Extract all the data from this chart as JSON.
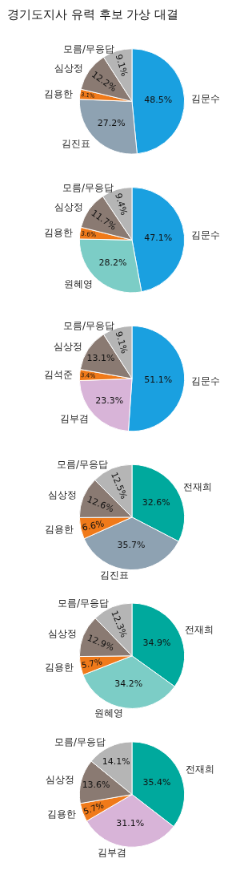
{
  "chart_data": [
    {
      "type": "pie",
      "title": "경기도지사 유력 후보 가상 대결",
      "categories": [
        "김문수",
        "김진표",
        "김용한",
        "심상정",
        "모름/무응답"
      ],
      "values": [
        48.5,
        27.2,
        3.1,
        12.2,
        9.1
      ],
      "colors": [
        "#1aa0e0",
        "#8ea2b2",
        "#f07a1a",
        "#8a7a72",
        "#b5b5b5"
      ],
      "value_labels": [
        "48.5%",
        "27.2%",
        "3.1%",
        "12.2%",
        "9.1%"
      ]
    },
    {
      "type": "pie",
      "categories": [
        "김문수",
        "원혜영",
        "김용한",
        "심상정",
        "모름/무응답"
      ],
      "values": [
        47.1,
        28.2,
        3.6,
        11.7,
        9.4
      ],
      "colors": [
        "#1aa0e0",
        "#7ccdc6",
        "#f07a1a",
        "#8a7a72",
        "#b5b5b5"
      ],
      "value_labels": [
        "47.1%",
        "28.2%",
        "3.6%",
        "11.7%",
        "9.4%"
      ]
    },
    {
      "type": "pie",
      "categories": [
        "김문수",
        "김부겸",
        "김석준",
        "심상정",
        "모름/무응답"
      ],
      "values": [
        51.1,
        23.3,
        3.4,
        13.1,
        9.1
      ],
      "colors": [
        "#1aa0e0",
        "#d8b4d8",
        "#f07a1a",
        "#8a7a72",
        "#b5b5b5"
      ],
      "value_labels": [
        "51.1%",
        "23.3%",
        "3.4%",
        "13.1%",
        "9.1%"
      ]
    },
    {
      "type": "pie",
      "categories": [
        "전재희",
        "김진표",
        "김용한",
        "심상정",
        "모름/무응답"
      ],
      "values": [
        32.6,
        35.7,
        6.6,
        12.6,
        12.5
      ],
      "colors": [
        "#00a99d",
        "#8ea2b2",
        "#f07a1a",
        "#8a7a72",
        "#b5b5b5"
      ],
      "value_labels": [
        "32.6%",
        "35.7%",
        "6.6%",
        "12.6%",
        "12.5%"
      ]
    },
    {
      "type": "pie",
      "categories": [
        "전재희",
        "원혜영",
        "김용한",
        "심상정",
        "모름/무응답"
      ],
      "values": [
        34.9,
        34.2,
        5.7,
        12.9,
        12.3
      ],
      "colors": [
        "#00a99d",
        "#7ccdc6",
        "#f07a1a",
        "#8a7a72",
        "#b5b5b5"
      ],
      "value_labels": [
        "34.9%",
        "34.2%",
        "5.7%",
        "12.9%",
        "12.3%"
      ]
    },
    {
      "type": "pie",
      "categories": [
        "전재희",
        "김부겸",
        "김용한",
        "심상정",
        "모름/무응답"
      ],
      "values": [
        35.4,
        31.1,
        5.7,
        13.6,
        14.1
      ],
      "colors": [
        "#00a99d",
        "#d8b4d8",
        "#f07a1a",
        "#8a7a72",
        "#b5b5b5"
      ],
      "value_labels": [
        "35.4%",
        "31.1%",
        "5.7%",
        "13.6%",
        "14.1%"
      ]
    }
  ]
}
